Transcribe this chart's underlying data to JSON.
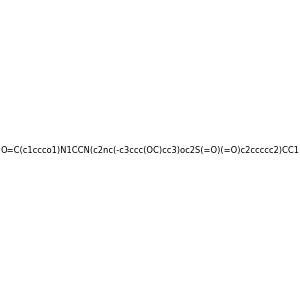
{
  "smiles": "O=C(c1ccco1)N1CCN(c2nc(-c3ccc(OC)cc3)oc2S(=O)(=O)c2ccccc2)CC1",
  "img_size": [
    300,
    300
  ],
  "background_color": "#e8e8e8",
  "atom_colors": {
    "N": [
      0,
      0,
      1
    ],
    "O": [
      1,
      0,
      0
    ],
    "S": [
      0.8,
      0.8,
      0
    ]
  },
  "title": "",
  "dpi": 100
}
